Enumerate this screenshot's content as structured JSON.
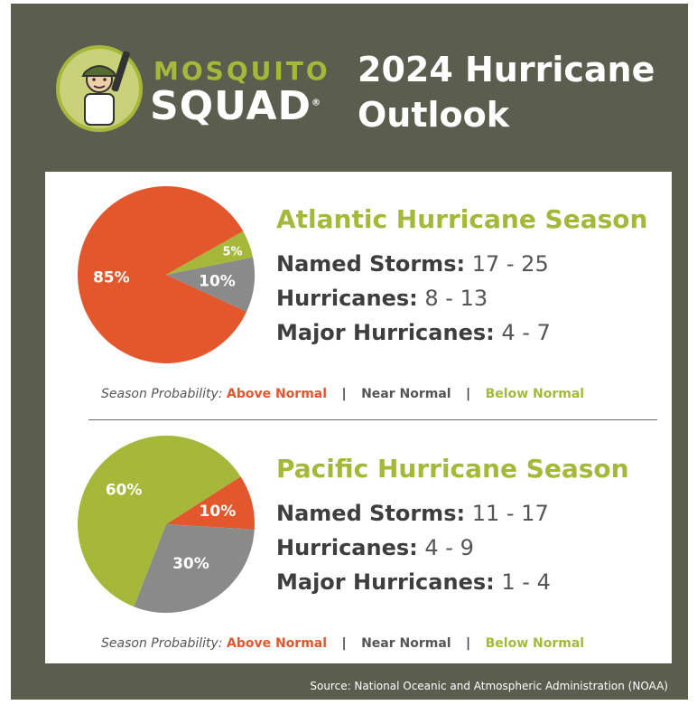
{
  "brand": {
    "line1": "MOSQUITO",
    "line2": "SQUAD",
    "mark": "®",
    "mascot_icon": "exterminator-mascot-icon"
  },
  "title": {
    "line1": "2024 Hurricane",
    "line2": "Outlook"
  },
  "colors": {
    "background": "#5b5d4e",
    "above_normal": "#e2572b",
    "near_normal": "#8a8a8a",
    "below_normal": "#a6b83a"
  },
  "probability_legend": {
    "label": "Season Probability:",
    "above": "Above Normal",
    "near": "Near Normal",
    "below": "Below Normal",
    "separator": "|"
  },
  "stats_labels": {
    "named_storms": "Named Storms:",
    "hurricanes": "Hurricanes:",
    "major_hurricanes": "Major Hurricanes:"
  },
  "atlantic": {
    "title": "Atlantic Hurricane Season",
    "named_storms": "17 - 25",
    "hurricanes": "8 - 13",
    "major_hurricanes": "4 - 7"
  },
  "pacific": {
    "title": "Pacific Hurricane Season",
    "named_storms": "11 - 17",
    "hurricanes": "4 - 9",
    "major_hurricanes": "1 - 4"
  },
  "source": "Source: National Oceanic and Atmospheric Administration (NOAA)",
  "chart_data": [
    {
      "type": "pie",
      "title": "Atlantic Hurricane Season",
      "categories": [
        "Above Normal",
        "Near Normal",
        "Below Normal"
      ],
      "values": [
        85,
        10,
        5
      ],
      "labels": [
        "85%",
        "10%",
        "5%"
      ],
      "colors": [
        "#e2572b",
        "#8a8a8a",
        "#a6b83a"
      ]
    },
    {
      "type": "pie",
      "title": "Pacific Hurricane Season",
      "categories": [
        "Above Normal",
        "Near Normal",
        "Below Normal"
      ],
      "values": [
        10,
        30,
        60
      ],
      "labels": [
        "10%",
        "30%",
        "60%"
      ],
      "colors": [
        "#e2572b",
        "#8a8a8a",
        "#a6b83a"
      ]
    }
  ]
}
